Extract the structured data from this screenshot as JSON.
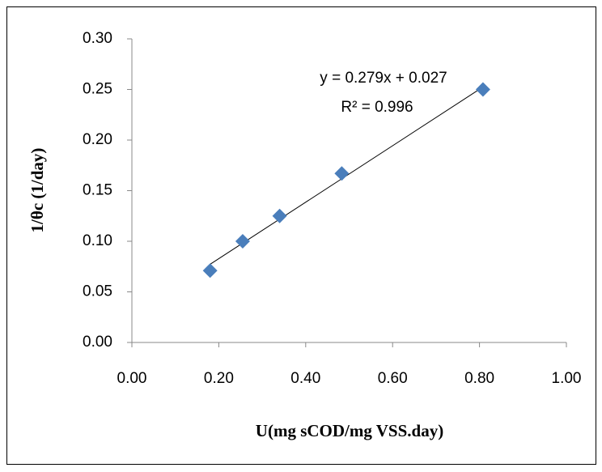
{
  "chart_data": {
    "type": "scatter",
    "x_label": "U(mg sCOD/mg VSS.day)",
    "y_label": "1/θc (1/day)",
    "series": [
      {
        "color": "#4a7ebb",
        "x": [
          0.18,
          0.255,
          0.34,
          0.483,
          0.808
        ],
        "values": [
          0.071,
          0.1,
          0.125,
          0.167,
          0.25
        ]
      }
    ],
    "trendline": {
      "slope": 0.279,
      "intercept": 0.027,
      "equation": "y = 0.279x + 0.027",
      "r2": "R² = 0.996",
      "color": "#000000"
    },
    "xlim": [
      0,
      1
    ],
    "ylim": [
      0,
      0.3
    ],
    "xticks": [
      {
        "value": 0,
        "label": "0.00"
      },
      {
        "value": 0.2,
        "label": "0.20"
      },
      {
        "value": 0.4,
        "label": "0.40"
      },
      {
        "value": 0.6,
        "label": "0.60"
      },
      {
        "value": 0.8,
        "label": "0.80"
      },
      {
        "value": 1,
        "label": "1.00"
      }
    ],
    "yticks": [
      {
        "value": 0,
        "label": "0.00"
      },
      {
        "value": 0.05,
        "label": "0.05"
      },
      {
        "value": 0.1,
        "label": "0.10"
      },
      {
        "value": 0.15,
        "label": "0.15"
      },
      {
        "value": 0.2,
        "label": "0.20"
      },
      {
        "value": 0.25,
        "label": "0.25"
      },
      {
        "value": 0.3,
        "label": "0.30"
      }
    ],
    "grid": false
  }
}
